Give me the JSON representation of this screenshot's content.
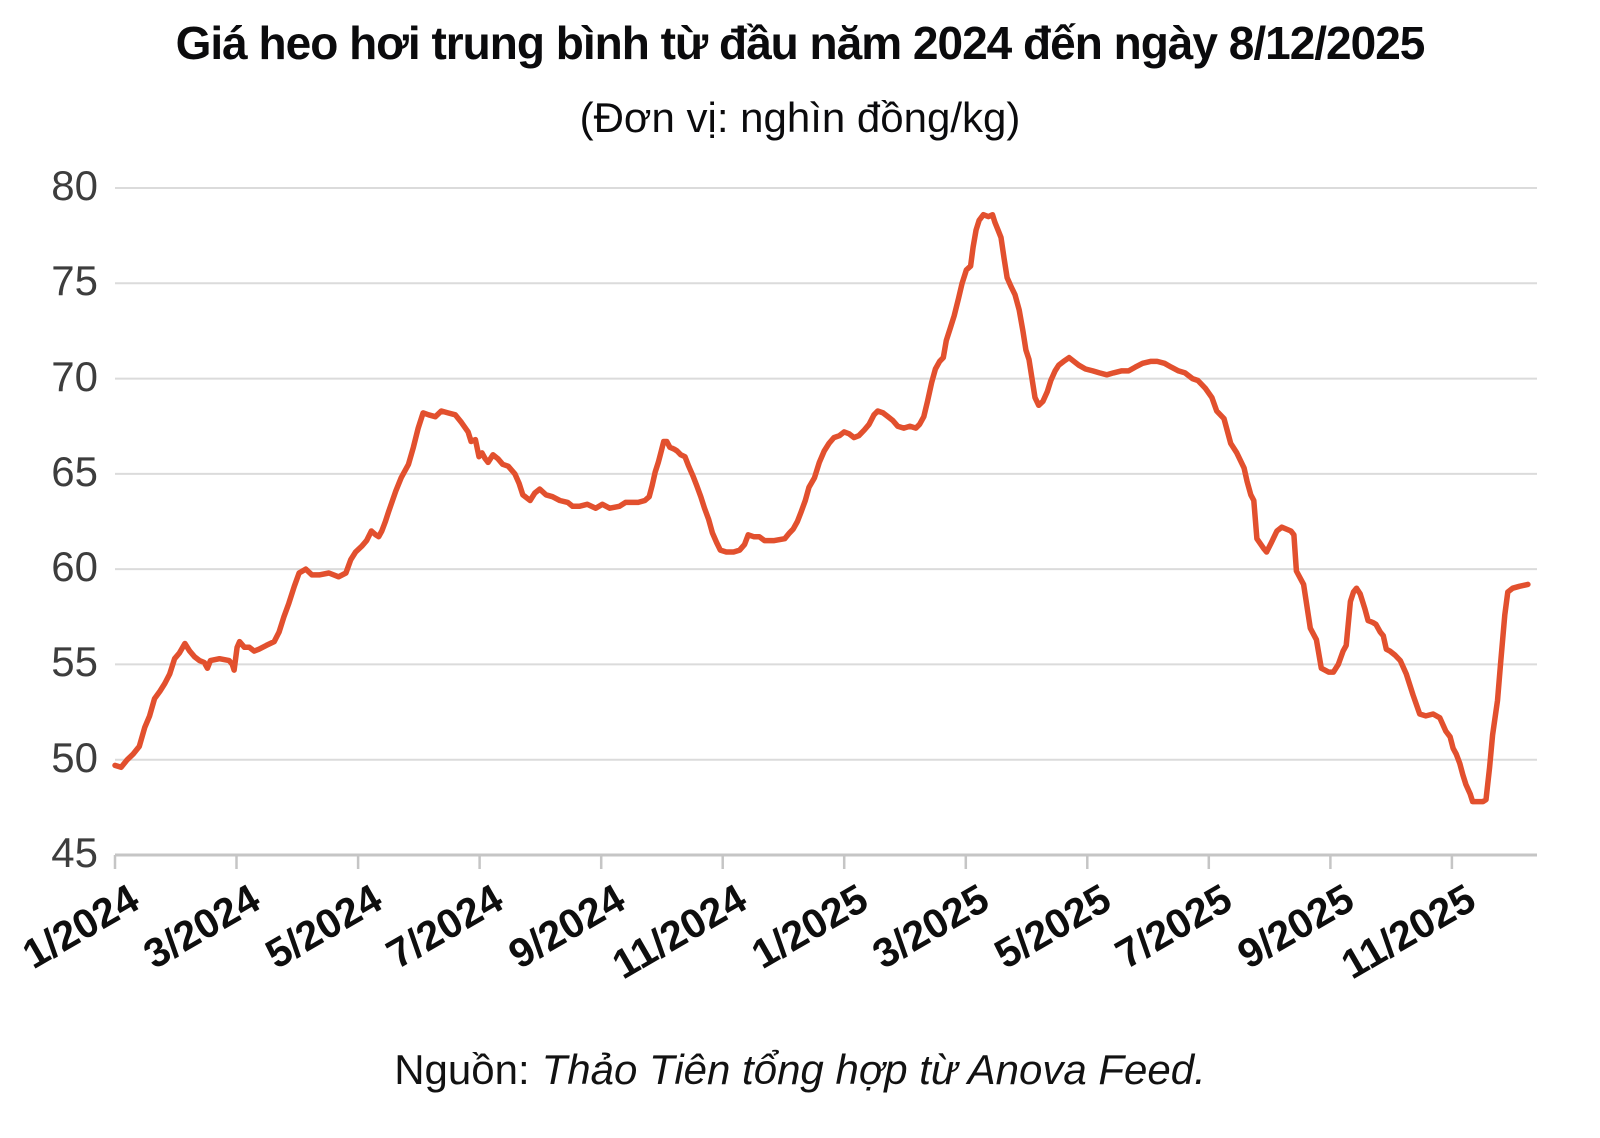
{
  "title": "Giá heo hơi trung bình từ đầu năm 2024 đến ngày 8/12/2025",
  "subtitle": "(Đơn vị: nghìn đồng/kg)",
  "source": {
    "label": "Nguồn:",
    "text": "Thảo Tiên tổng hợp từ Anova Feed."
  },
  "colors": {
    "line": "#E2502E",
    "grid": "#DBDBDB",
    "axis": "#C5C5C5",
    "title_text": "#0B0B0D",
    "y_tick_text": "#3D3D3D",
    "x_tick_text": "#0E0E0E"
  },
  "chart_data": {
    "type": "line",
    "title": "Giá heo hơi trung bình từ đầu năm 2024 đến ngày 8/12/2025",
    "unit_label": "(Đơn vị: nghìn đồng/kg)",
    "xlabel": "",
    "ylabel": "nghìn đồng/kg",
    "ylim": [
      45,
      80
    ],
    "yticks": [
      45,
      50,
      55,
      60,
      65,
      70,
      75,
      80
    ],
    "grid": "horizontal",
    "legend": "none",
    "xlim_months": [
      0,
      23.4
    ],
    "xticks": [
      {
        "m": 0,
        "label": "1/2024"
      },
      {
        "m": 2,
        "label": "3/2024"
      },
      {
        "m": 4,
        "label": "5/2024"
      },
      {
        "m": 6,
        "label": "7/2024"
      },
      {
        "m": 8,
        "label": "9/2024"
      },
      {
        "m": 10,
        "label": "11/2024"
      },
      {
        "m": 12,
        "label": "1/2025"
      },
      {
        "m": 14,
        "label": "3/2025"
      },
      {
        "m": 16,
        "label": "5/2025"
      },
      {
        "m": 18,
        "label": "7/2025"
      },
      {
        "m": 20,
        "label": "9/2025"
      },
      {
        "m": 22,
        "label": "11/2025"
      }
    ],
    "series": [
      {
        "name": "Giá heo hơi trung bình",
        "points": [
          [
            0.0,
            49.7
          ],
          [
            0.1,
            49.6
          ],
          [
            0.2,
            50.0
          ],
          [
            0.3,
            50.3
          ],
          [
            0.4,
            50.7
          ],
          [
            0.49,
            51.7
          ],
          [
            0.57,
            52.3
          ],
          [
            0.65,
            53.2
          ],
          [
            0.74,
            53.6
          ],
          [
            0.82,
            54.0
          ],
          [
            0.9,
            54.5
          ],
          [
            0.98,
            55.3
          ],
          [
            1.06,
            55.6
          ],
          [
            1.15,
            56.1
          ],
          [
            1.23,
            55.7
          ],
          [
            1.31,
            55.4
          ],
          [
            1.39,
            55.2
          ],
          [
            1.47,
            55.1
          ],
          [
            1.52,
            54.8
          ],
          [
            1.57,
            55.2
          ],
          [
            1.72,
            55.3
          ],
          [
            1.88,
            55.2
          ],
          [
            1.93,
            55.0
          ],
          [
            1.96,
            54.7
          ],
          [
            2.01,
            55.9
          ],
          [
            2.05,
            56.2
          ],
          [
            2.13,
            55.9
          ],
          [
            2.21,
            55.9
          ],
          [
            2.29,
            55.7
          ],
          [
            2.37,
            55.8
          ],
          [
            2.49,
            56.0
          ],
          [
            2.62,
            56.2
          ],
          [
            2.7,
            56.7
          ],
          [
            2.78,
            57.5
          ],
          [
            2.86,
            58.2
          ],
          [
            2.95,
            59.1
          ],
          [
            3.03,
            59.8
          ],
          [
            3.14,
            60.0
          ],
          [
            3.24,
            59.7
          ],
          [
            3.36,
            59.7
          ],
          [
            3.52,
            59.8
          ],
          [
            3.68,
            59.6
          ],
          [
            3.8,
            59.8
          ],
          [
            3.88,
            60.5
          ],
          [
            3.96,
            60.9
          ],
          [
            4.06,
            61.2
          ],
          [
            4.14,
            61.5
          ],
          [
            4.22,
            62.0
          ],
          [
            4.29,
            61.8
          ],
          [
            4.34,
            61.7
          ],
          [
            4.39,
            62.0
          ],
          [
            4.45,
            62.5
          ],
          [
            4.5,
            63.0
          ],
          [
            4.62,
            64.1
          ],
          [
            4.71,
            64.8
          ],
          [
            4.83,
            65.5
          ],
          [
            4.91,
            66.4
          ],
          [
            4.99,
            67.4
          ],
          [
            5.07,
            68.2
          ],
          [
            5.16,
            68.1
          ],
          [
            5.27,
            68.0
          ],
          [
            5.37,
            68.3
          ],
          [
            5.48,
            68.2
          ],
          [
            5.6,
            68.1
          ],
          [
            5.7,
            67.7
          ],
          [
            5.81,
            67.2
          ],
          [
            5.86,
            66.7
          ],
          [
            5.93,
            66.8
          ],
          [
            5.99,
            65.9
          ],
          [
            6.04,
            66.1
          ],
          [
            6.09,
            65.8
          ],
          [
            6.14,
            65.6
          ],
          [
            6.22,
            66.0
          ],
          [
            6.3,
            65.8
          ],
          [
            6.38,
            65.5
          ],
          [
            6.47,
            65.4
          ],
          [
            6.58,
            65.0
          ],
          [
            6.65,
            64.5
          ],
          [
            6.71,
            63.9
          ],
          [
            6.83,
            63.6
          ],
          [
            6.91,
            64.0
          ],
          [
            6.99,
            64.2
          ],
          [
            7.09,
            63.9
          ],
          [
            7.2,
            63.8
          ],
          [
            7.32,
            63.6
          ],
          [
            7.45,
            63.5
          ],
          [
            7.53,
            63.3
          ],
          [
            7.64,
            63.3
          ],
          [
            7.77,
            63.4
          ],
          [
            7.91,
            63.2
          ],
          [
            8.02,
            63.4
          ],
          [
            8.14,
            63.2
          ],
          [
            8.3,
            63.3
          ],
          [
            8.4,
            63.5
          ],
          [
            8.51,
            63.5
          ],
          [
            8.61,
            63.5
          ],
          [
            8.72,
            63.6
          ],
          [
            8.79,
            63.8
          ],
          [
            8.84,
            64.4
          ],
          [
            8.89,
            65.1
          ],
          [
            8.94,
            65.6
          ],
          [
            8.99,
            66.2
          ],
          [
            9.03,
            66.7
          ],
          [
            9.08,
            66.7
          ],
          [
            9.13,
            66.4
          ],
          [
            9.2,
            66.3
          ],
          [
            9.25,
            66.2
          ],
          [
            9.31,
            66.0
          ],
          [
            9.38,
            65.9
          ],
          [
            9.44,
            65.4
          ],
          [
            9.51,
            64.9
          ],
          [
            9.57,
            64.4
          ],
          [
            9.64,
            63.8
          ],
          [
            9.7,
            63.2
          ],
          [
            9.77,
            62.6
          ],
          [
            9.83,
            61.9
          ],
          [
            9.9,
            61.4
          ],
          [
            9.96,
            61.0
          ],
          [
            10.06,
            60.9
          ],
          [
            10.18,
            60.9
          ],
          [
            10.28,
            61.0
          ],
          [
            10.36,
            61.3
          ],
          [
            10.42,
            61.8
          ],
          [
            10.51,
            61.7
          ],
          [
            10.6,
            61.7
          ],
          [
            10.69,
            61.5
          ],
          [
            10.85,
            61.5
          ],
          [
            11.02,
            61.6
          ],
          [
            11.1,
            61.9
          ],
          [
            11.16,
            62.1
          ],
          [
            11.23,
            62.5
          ],
          [
            11.29,
            63.0
          ],
          [
            11.36,
            63.6
          ],
          [
            11.42,
            64.3
          ],
          [
            11.51,
            64.8
          ],
          [
            11.59,
            65.6
          ],
          [
            11.67,
            66.2
          ],
          [
            11.75,
            66.6
          ],
          [
            11.83,
            66.9
          ],
          [
            11.92,
            67.0
          ],
          [
            12.0,
            67.2
          ],
          [
            12.08,
            67.1
          ],
          [
            12.16,
            66.9
          ],
          [
            12.24,
            67.0
          ],
          [
            12.33,
            67.3
          ],
          [
            12.41,
            67.6
          ],
          [
            12.49,
            68.1
          ],
          [
            12.55,
            68.3
          ],
          [
            12.64,
            68.2
          ],
          [
            12.72,
            68.0
          ],
          [
            12.8,
            67.8
          ],
          [
            12.88,
            67.5
          ],
          [
            12.98,
            67.4
          ],
          [
            13.08,
            67.5
          ],
          [
            13.18,
            67.4
          ],
          [
            13.24,
            67.6
          ],
          [
            13.31,
            68.0
          ],
          [
            13.37,
            68.8
          ],
          [
            13.44,
            69.8
          ],
          [
            13.5,
            70.5
          ],
          [
            13.57,
            70.9
          ],
          [
            13.63,
            71.1
          ],
          [
            13.68,
            72.0
          ],
          [
            13.75,
            72.7
          ],
          [
            13.81,
            73.3
          ],
          [
            13.88,
            74.2
          ],
          [
            13.94,
            75.0
          ],
          [
            14.01,
            75.7
          ],
          [
            14.08,
            75.9
          ],
          [
            14.12,
            76.9
          ],
          [
            14.17,
            77.8
          ],
          [
            14.22,
            78.3
          ],
          [
            14.29,
            78.6
          ],
          [
            14.37,
            78.5
          ],
          [
            14.44,
            78.6
          ],
          [
            14.48,
            78.2
          ],
          [
            14.53,
            77.8
          ],
          [
            14.58,
            77.4
          ],
          [
            14.63,
            76.3
          ],
          [
            14.68,
            75.3
          ],
          [
            14.75,
            74.8
          ],
          [
            14.81,
            74.4
          ],
          [
            14.88,
            73.6
          ],
          [
            14.94,
            72.5
          ],
          [
            14.99,
            71.5
          ],
          [
            15.04,
            71.0
          ],
          [
            15.09,
            70.0
          ],
          [
            15.14,
            69.0
          ],
          [
            15.2,
            68.6
          ],
          [
            15.27,
            68.8
          ],
          [
            15.34,
            69.3
          ],
          [
            15.4,
            69.9
          ],
          [
            15.47,
            70.4
          ],
          [
            15.53,
            70.7
          ],
          [
            15.61,
            70.9
          ],
          [
            15.7,
            71.1
          ],
          [
            15.78,
            70.9
          ],
          [
            15.86,
            70.7
          ],
          [
            15.97,
            70.5
          ],
          [
            16.09,
            70.4
          ],
          [
            16.2,
            70.3
          ],
          [
            16.32,
            70.2
          ],
          [
            16.43,
            70.3
          ],
          [
            16.56,
            70.4
          ],
          [
            16.68,
            70.4
          ],
          [
            16.79,
            70.6
          ],
          [
            16.91,
            70.8
          ],
          [
            17.04,
            70.9
          ],
          [
            17.15,
            70.9
          ],
          [
            17.27,
            70.8
          ],
          [
            17.38,
            70.6
          ],
          [
            17.5,
            70.4
          ],
          [
            17.61,
            70.3
          ],
          [
            17.73,
            70.0
          ],
          [
            17.82,
            69.9
          ],
          [
            17.94,
            69.5
          ],
          [
            18.05,
            69.0
          ],
          [
            18.13,
            68.3
          ],
          [
            18.25,
            67.9
          ],
          [
            18.36,
            66.6
          ],
          [
            18.46,
            66.1
          ],
          [
            18.58,
            65.3
          ],
          [
            18.63,
            64.6
          ],
          [
            18.69,
            63.9
          ],
          [
            18.74,
            63.6
          ],
          [
            18.79,
            61.6
          ],
          [
            18.9,
            61.1
          ],
          [
            18.95,
            60.9
          ],
          [
            19.03,
            61.4
          ],
          [
            19.12,
            62.0
          ],
          [
            19.2,
            62.2
          ],
          [
            19.35,
            62.0
          ],
          [
            19.4,
            61.8
          ],
          [
            19.44,
            59.9
          ],
          [
            19.56,
            59.2
          ],
          [
            19.67,
            56.9
          ],
          [
            19.77,
            56.3
          ],
          [
            19.85,
            54.8
          ],
          [
            19.97,
            54.6
          ],
          [
            20.05,
            54.6
          ],
          [
            20.13,
            55.0
          ],
          [
            20.21,
            55.7
          ],
          [
            20.26,
            56.0
          ],
          [
            20.33,
            58.3
          ],
          [
            20.38,
            58.8
          ],
          [
            20.43,
            59.0
          ],
          [
            20.49,
            58.7
          ],
          [
            20.57,
            57.9
          ],
          [
            20.62,
            57.3
          ],
          [
            20.7,
            57.2
          ],
          [
            20.75,
            57.1
          ],
          [
            20.82,
            56.7
          ],
          [
            20.87,
            56.5
          ],
          [
            20.92,
            55.8
          ],
          [
            20.98,
            55.7
          ],
          [
            21.06,
            55.5
          ],
          [
            21.15,
            55.2
          ],
          [
            21.25,
            54.5
          ],
          [
            21.36,
            53.4
          ],
          [
            21.47,
            52.4
          ],
          [
            21.57,
            52.3
          ],
          [
            21.69,
            52.4
          ],
          [
            21.8,
            52.2
          ],
          [
            21.9,
            51.5
          ],
          [
            21.97,
            51.2
          ],
          [
            22.02,
            50.6
          ],
          [
            22.07,
            50.3
          ],
          [
            22.13,
            49.8
          ],
          [
            22.18,
            49.2
          ],
          [
            22.23,
            48.7
          ],
          [
            22.3,
            48.2
          ],
          [
            22.34,
            47.8
          ],
          [
            22.46,
            47.8
          ],
          [
            22.51,
            47.8
          ],
          [
            22.56,
            47.9
          ],
          [
            22.62,
            49.6
          ],
          [
            22.67,
            51.3
          ],
          [
            22.75,
            53.1
          ],
          [
            22.8,
            55.0
          ],
          [
            22.87,
            57.6
          ],
          [
            22.92,
            58.8
          ],
          [
            23.0,
            59.0
          ],
          [
            23.11,
            59.1
          ],
          [
            23.25,
            59.2
          ]
        ]
      }
    ]
  }
}
